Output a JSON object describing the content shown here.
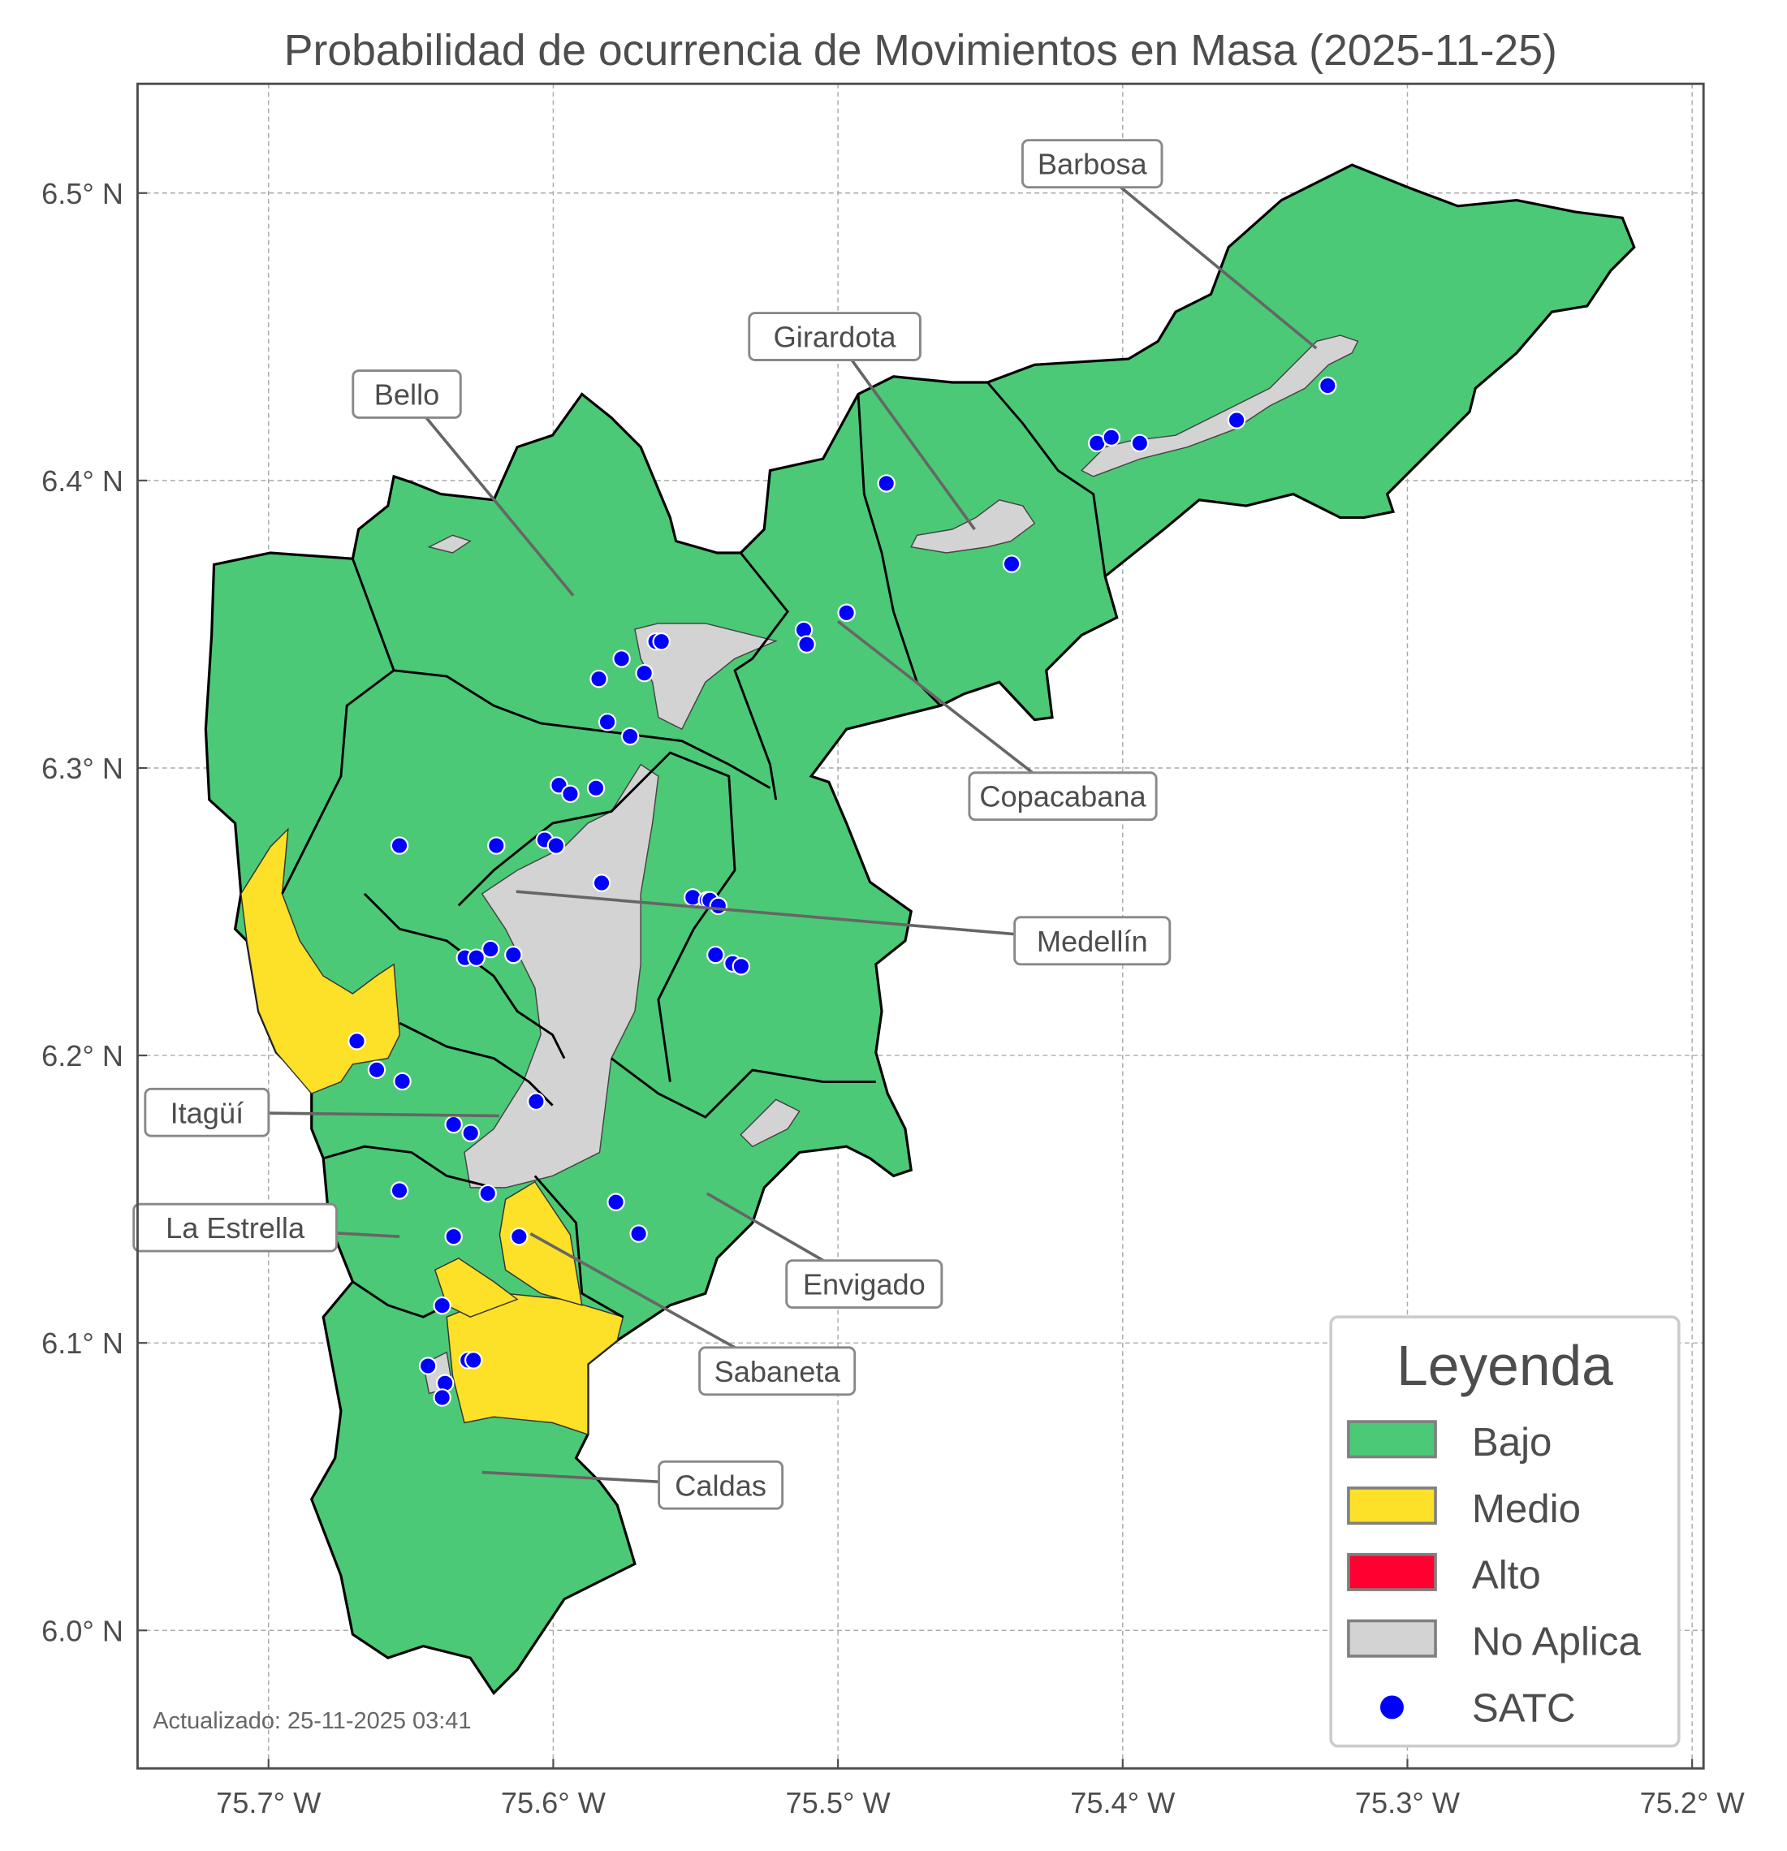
{
  "chart_data": {
    "type": "map",
    "title": "Probabilidad de ocurrencia de Movimientos en Masa (2025-11-25)",
    "footer": "Actualizado: 25-11-2025 03:41",
    "xlim": [
      -75.746,
      -75.196
    ],
    "ylim": [
      5.952,
      6.538
    ],
    "grid": true,
    "x_ticks": [
      {
        "value": -75.7,
        "label": "75.7° W"
      },
      {
        "value": -75.6,
        "label": "75.6° W"
      },
      {
        "value": -75.5,
        "label": "75.5° W"
      },
      {
        "value": -75.4,
        "label": "75.4° W"
      },
      {
        "value": -75.3,
        "label": "75.3° W"
      },
      {
        "value": -75.2,
        "label": "75.2° W"
      }
    ],
    "y_ticks": [
      {
        "value": 6.5,
        "label": "6.5° N"
      },
      {
        "value": 6.4,
        "label": "6.4° N"
      },
      {
        "value": 6.3,
        "label": "6.3° N"
      },
      {
        "value": 6.2,
        "label": "6.2° N"
      },
      {
        "value": 6.1,
        "label": "6.1° N"
      },
      {
        "value": 6.0,
        "label": "6.0° N"
      }
    ],
    "legend": {
      "title": "Leyenda",
      "placement": "bottom-right",
      "items": [
        {
          "label": "Bajo",
          "color": "#4bc977",
          "kind": "patch"
        },
        {
          "label": "Medio",
          "color": "#fde028",
          "kind": "patch"
        },
        {
          "label": "Alto",
          "color": "#ff0030",
          "kind": "patch"
        },
        {
          "label": "No Aplica",
          "color": "#d3d3d3",
          "kind": "patch"
        },
        {
          "label": "SATC",
          "color": "#0000ff",
          "kind": "point"
        }
      ]
    },
    "municipalities": [
      {
        "name": "Barbosa",
        "lon": -75.332,
        "lat": 6.446
      },
      {
        "name": "Girardota",
        "lon": -75.452,
        "lat": 6.383
      },
      {
        "name": "Bello",
        "lon": -75.593,
        "lat": 6.36
      },
      {
        "name": "Copacabana",
        "lon": -75.5,
        "lat": 6.351
      },
      {
        "name": "Medellín",
        "lon": -75.613,
        "lat": 6.257
      },
      {
        "name": "Itagüí",
        "lon": -75.619,
        "lat": 6.179
      },
      {
        "name": "La Estrella",
        "lon": -75.654,
        "lat": 6.137
      },
      {
        "name": "Envigado",
        "lon": -75.546,
        "lat": 6.152
      },
      {
        "name": "Sabaneta",
        "lon": -75.608,
        "lat": 6.138
      },
      {
        "name": "Caldas",
        "lon": -75.625,
        "lat": 6.055
      }
    ],
    "satc_points": [
      [
        -75.328,
        6.433
      ],
      [
        -75.36,
        6.421
      ],
      [
        -75.409,
        6.413
      ],
      [
        -75.404,
        6.415
      ],
      [
        -75.394,
        6.413
      ],
      [
        -75.483,
        6.399
      ],
      [
        -75.439,
        6.371
      ],
      [
        -75.497,
        6.354
      ],
      [
        -75.512,
        6.348
      ],
      [
        -75.511,
        6.343
      ],
      [
        -75.564,
        6.344
      ],
      [
        -75.562,
        6.344
      ],
      [
        -75.576,
        6.338
      ],
      [
        -75.584,
        6.331
      ],
      [
        -75.568,
        6.333
      ],
      [
        -75.581,
        6.316
      ],
      [
        -75.573,
        6.311
      ],
      [
        -75.598,
        6.294
      ],
      [
        -75.594,
        6.291
      ],
      [
        -75.585,
        6.293
      ],
      [
        -75.62,
        6.273
      ],
      [
        -75.603,
        6.275
      ],
      [
        -75.599,
        6.273
      ],
      [
        -75.654,
        6.273
      ],
      [
        -75.583,
        6.26
      ],
      [
        -75.551,
        6.255
      ],
      [
        -75.546,
        6.254
      ],
      [
        -75.545,
        6.254
      ],
      [
        -75.542,
        6.252
      ],
      [
        -75.543,
        6.235
      ],
      [
        -75.537,
        6.232
      ],
      [
        -75.534,
        6.231
      ],
      [
        -75.622,
        6.237
      ],
      [
        -75.631,
        6.234
      ],
      [
        -75.627,
        6.234
      ],
      [
        -75.614,
        6.235
      ],
      [
        -75.669,
        6.205
      ],
      [
        -75.662,
        6.195
      ],
      [
        -75.653,
        6.191
      ],
      [
        -75.606,
        6.184
      ],
      [
        -75.635,
        6.176
      ],
      [
        -75.629,
        6.173
      ],
      [
        -75.654,
        6.153
      ],
      [
        -75.623,
        6.152
      ],
      [
        -75.578,
        6.149
      ],
      [
        -75.57,
        6.138
      ],
      [
        -75.635,
        6.137
      ],
      [
        -75.612,
        6.137
      ],
      [
        -75.639,
        6.113
      ],
      [
        -75.644,
        6.092
      ],
      [
        -75.63,
        6.094
      ],
      [
        -75.628,
        6.094
      ],
      [
        -75.638,
        6.086
      ],
      [
        -75.639,
        6.081
      ]
    ]
  }
}
